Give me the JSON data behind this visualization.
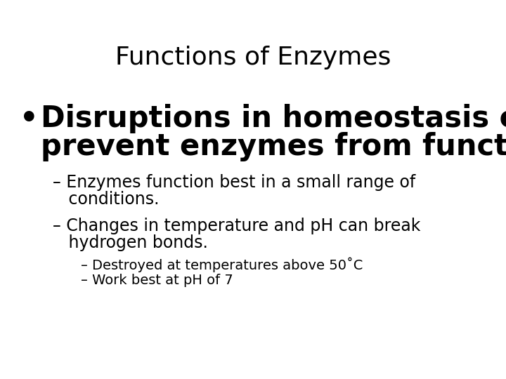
{
  "title": "Functions of Enzymes",
  "title_fontsize": 26,
  "title_color": "#000000",
  "background_color": "#ffffff",
  "bullet_marker": "•",
  "bullet_line1": "Disruptions in homeostasis can",
  "bullet_line2": "prevent enzymes from functioning.",
  "bullet_fontsize": 30,
  "sub_bullet1_line1": "– Enzymes function best in a small range of",
  "sub_bullet1_line2": "   conditions.",
  "sub_bullet2_line1": "– Changes in temperature and pH can break",
  "sub_bullet2_line2": "   hydrogen bonds.",
  "sub_fontsize": 17,
  "sub_sub_bullet1": "– Destroyed at temperatures above 50˚C",
  "sub_sub_bullet2": "– Work best at pH of 7",
  "sub_sub_fontsize": 14,
  "text_color": "#000000",
  "font_family": "DejaVu Sans"
}
